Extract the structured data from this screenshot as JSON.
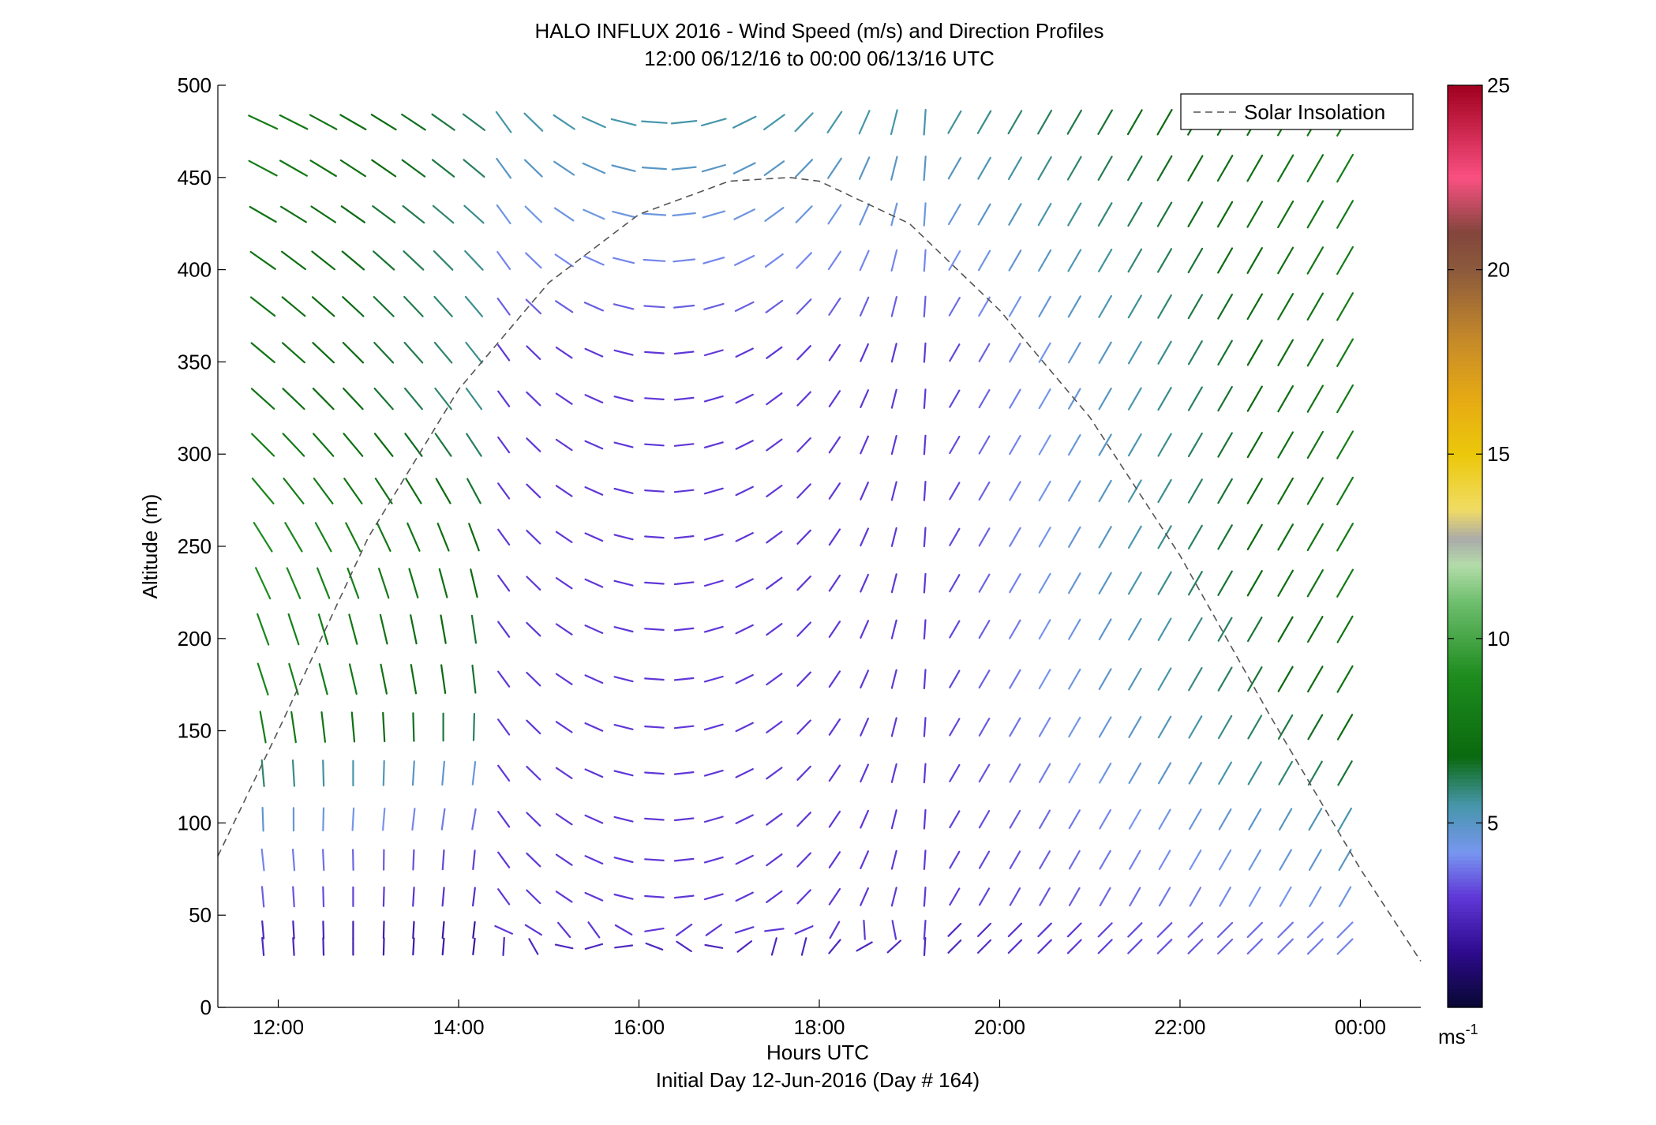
{
  "chart_data": {
    "type": "scatter",
    "subtype": "wind-barb-profile",
    "title": "HALO INFLUX 2016 - Wind Speed (m/s) and Direction Profiles",
    "subtitle": "12:00 06/12/16 to 00:00 06/13/16  UTC",
    "xlabel": "Hours UTC",
    "xlabel2": "Initial Day 12-Jun-2016 (Day # 164)",
    "ylabel": "Altitude (m)",
    "xlim_hours": [
      11.33,
      24.67
    ],
    "ylim": [
      0,
      500
    ],
    "x_ticks": [
      {
        "value": 12,
        "label": "12:00"
      },
      {
        "value": 14,
        "label": "14:00"
      },
      {
        "value": 16,
        "label": "16:00"
      },
      {
        "value": 18,
        "label": "18:00"
      },
      {
        "value": 20,
        "label": "20:00"
      },
      {
        "value": 22,
        "label": "22:00"
      },
      {
        "value": 24,
        "label": "00:00"
      }
    ],
    "y_ticks": [
      0,
      50,
      100,
      150,
      200,
      250,
      300,
      350,
      400,
      450,
      500
    ],
    "colorbar": {
      "range": [
        0,
        25
      ],
      "ticks": [
        5,
        10,
        15,
        20,
        25
      ],
      "unit_label": "ms",
      "unit_exponent": "-1"
    },
    "legend": {
      "entries": [
        "Solar Insolation"
      ],
      "position": "top-right"
    },
    "grid": false,
    "solar_insolation": {
      "x": [
        11.33,
        12,
        13,
        14,
        15,
        16,
        17,
        17.67,
        18,
        19,
        20,
        21,
        22,
        23,
        24,
        24.67
      ],
      "y": [
        82,
        150,
        255,
        335,
        393,
        430,
        448,
        450,
        448,
        425,
        378,
        320,
        245,
        158,
        75,
        25
      ]
    },
    "wind_profile": {
      "times_hours": [
        11.83,
        12.17,
        12.5,
        12.83,
        13.17,
        13.5,
        13.83,
        14.17,
        14.5,
        14.83,
        15.17,
        15.5,
        15.83,
        16.17,
        16.5,
        16.83,
        17.17,
        17.5,
        17.83,
        18.17,
        18.5,
        18.83,
        19.17,
        19.5,
        19.83,
        20.17,
        20.5,
        20.83,
        21.17,
        21.5,
        21.83,
        22.17,
        22.5,
        22.83,
        23.17,
        23.5,
        23.83
      ],
      "altitudes_m": [
        33,
        42,
        60,
        80,
        102,
        127,
        152,
        178,
        205,
        230,
        255,
        280,
        305,
        330,
        355,
        380,
        405,
        430,
        455,
        480
      ],
      "note_direction": "arrow angle in degrees, 0 = pointing up, clockwise positive",
      "low_level_speed_ms": [
        2.5,
        2.5,
        3.5,
        4.0,
        4.8,
        6.0,
        8.0,
        8.5,
        8.5,
        9.0,
        9.0,
        8.5,
        8.0,
        7.5,
        7.5,
        7.5,
        7.5,
        7.5,
        8.0,
        8.0
      ],
      "low_level_angle_deg": [
        85,
        85,
        85,
        84,
        88,
        85,
        80,
        72,
        70,
        65,
        58,
        50,
        45,
        42,
        40,
        38,
        35,
        30,
        28,
        25
      ],
      "mid_speed_ms": [
        2.5,
        3.0,
        3.0,
        3.0,
        3.0,
        3.0,
        3.0,
        3.0,
        3.0,
        3.0,
        3.0,
        3.0,
        3.0,
        3.0,
        3.0,
        3.5,
        4.0,
        4.5,
        5.0,
        5.5
      ],
      "late_speed_ms": [
        3.0,
        4.0,
        4.5,
        5.0,
        5.5,
        6.5,
        7.0,
        7.5,
        7.5,
        8.0,
        8.0,
        8.0,
        8.0,
        8.0,
        8.0,
        8.0,
        8.0,
        8.0,
        8.0,
        8.0
      ],
      "late_angle_deg": 30
    }
  }
}
